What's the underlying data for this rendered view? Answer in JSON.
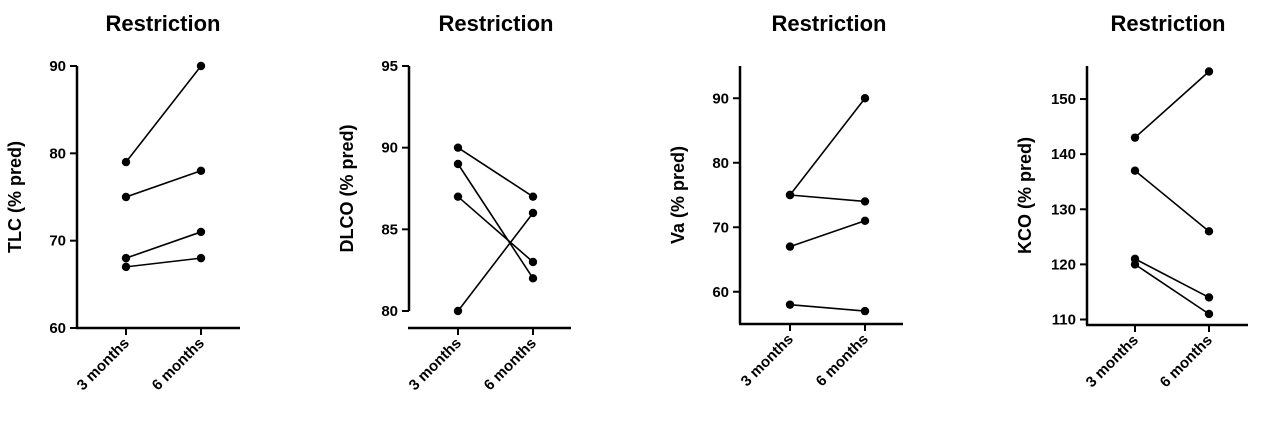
{
  "chart_data": [
    {
      "type": "line",
      "title": "Restriction",
      "ylabel": "TLC (% pred)",
      "categories": [
        "3 months",
        "6 months"
      ],
      "ylim": [
        60,
        90
      ],
      "yticks": [
        60,
        70,
        80,
        90
      ],
      "series": [
        {
          "values": [
            79,
            90
          ]
        },
        {
          "values": [
            75,
            78
          ]
        },
        {
          "values": [
            68,
            71
          ]
        },
        {
          "values": [
            67,
            68
          ]
        }
      ]
    },
    {
      "type": "line",
      "title": "Restriction",
      "ylabel": "DLCO (% pred)",
      "categories": [
        "3 months",
        "6 months"
      ],
      "ylim": [
        80,
        95
      ],
      "yticks": [
        80,
        85,
        90,
        95
      ],
      "series": [
        {
          "values": [
            90,
            87
          ]
        },
        {
          "values": [
            89,
            82
          ]
        },
        {
          "values": [
            87,
            83
          ]
        },
        {
          "values": [
            80,
            86
          ]
        }
      ]
    },
    {
      "type": "line",
      "title": "Restriction",
      "ylabel": "Va (% pred)",
      "categories": [
        "3 months",
        "6 months"
      ],
      "ylim": [
        55,
        95
      ],
      "yticks": [
        60,
        70,
        80,
        90
      ],
      "series": [
        {
          "values": [
            75,
            90
          ]
        },
        {
          "values": [
            75,
            74
          ]
        },
        {
          "values": [
            67,
            71
          ]
        },
        {
          "values": [
            58,
            57
          ]
        }
      ]
    },
    {
      "type": "line",
      "title": "Restriction",
      "ylabel": "KCO (% pred)",
      "categories": [
        "3 months",
        "6 months"
      ],
      "ylim": [
        109,
        156
      ],
      "yticks": [
        110,
        120,
        130,
        140,
        150
      ],
      "series": [
        {
          "values": [
            143,
            155
          ]
        },
        {
          "values": [
            137,
            126
          ]
        },
        {
          "values": [
            121,
            114
          ]
        },
        {
          "values": [
            120,
            111
          ]
        }
      ]
    }
  ]
}
